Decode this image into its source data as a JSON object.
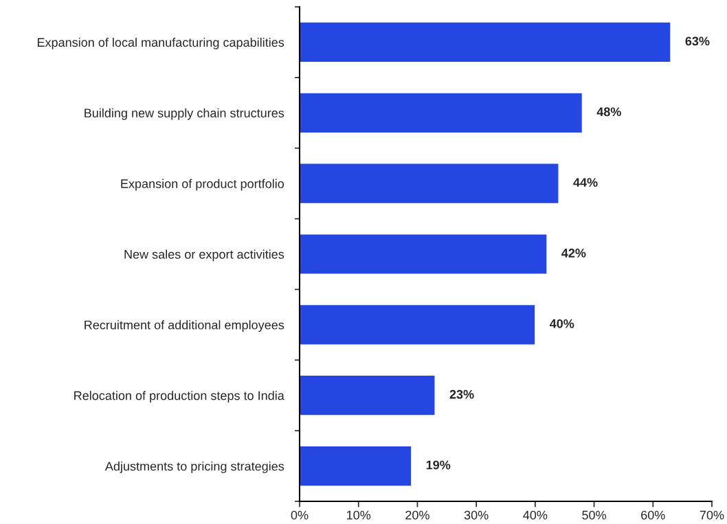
{
  "chart_data": {
    "type": "bar",
    "orientation": "horizontal",
    "categories": [
      "Expansion of local manufacturing capabilities",
      "Building new supply chain structures",
      "Expansion of product portfolio",
      "New sales or export activities",
      "Recruitment of additional employees",
      "Relocation of production steps to India",
      "Adjustments to pricing strategies"
    ],
    "values": [
      63,
      48,
      44,
      42,
      40,
      23,
      19
    ],
    "value_labels": [
      "63%",
      "48%",
      "44%",
      "42%",
      "40%",
      "23%",
      "19%"
    ],
    "color": "#2347e0",
    "xlim": [
      0,
      70
    ],
    "xticks": [
      {
        "value": 0,
        "label": "0%"
      },
      {
        "value": 10,
        "label": "10%"
      },
      {
        "value": 20,
        "label": "20%"
      },
      {
        "value": 30,
        "label": "30%"
      },
      {
        "value": 40,
        "label": "40%"
      },
      {
        "value": 50,
        "label": "50%"
      },
      {
        "value": 60,
        "label": "60%"
      },
      {
        "value": 70,
        "label": "70%"
      }
    ],
    "grid": false,
    "legend": false
  }
}
